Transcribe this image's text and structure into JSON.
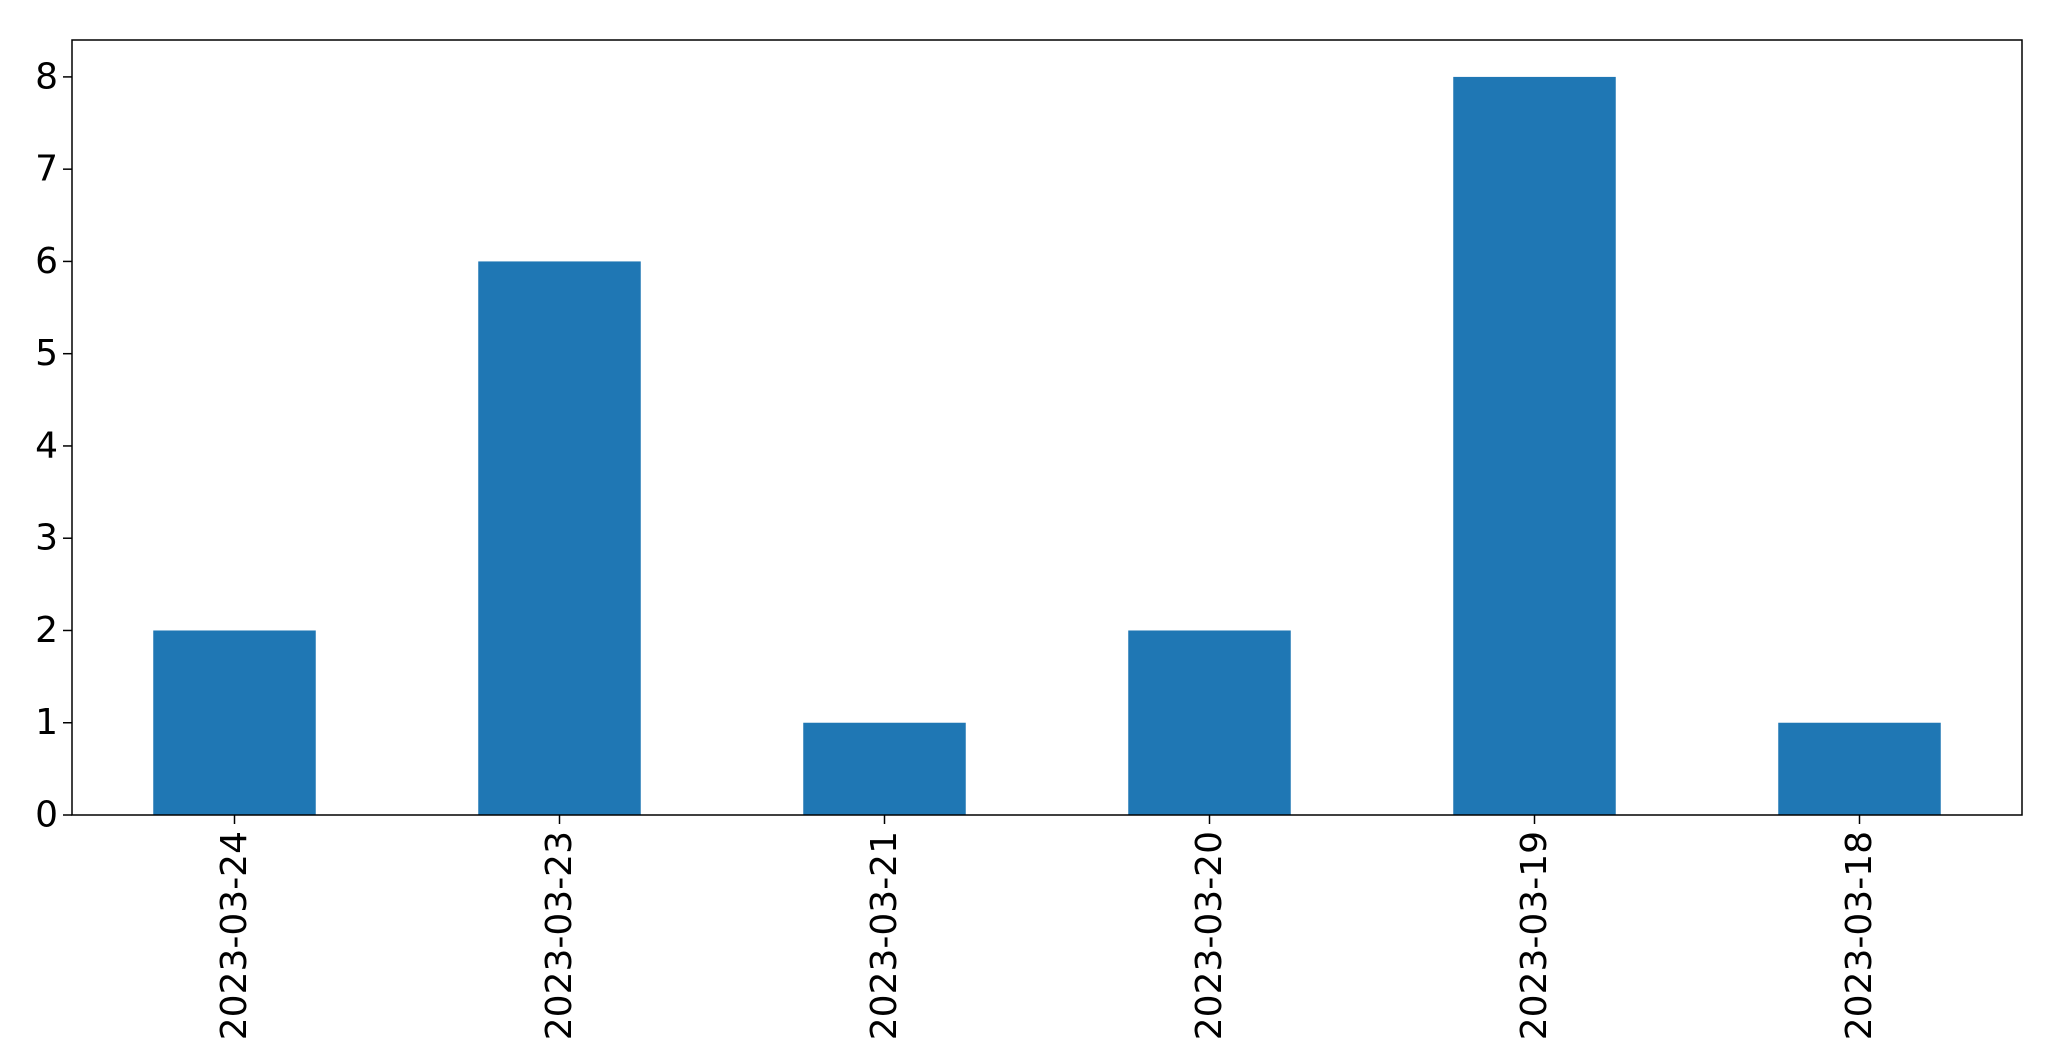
{
  "chart_data": {
    "type": "bar",
    "categories": [
      "2023-03-24",
      "2023-03-23",
      "2023-03-21",
      "2023-03-20",
      "2023-03-19",
      "2023-03-18"
    ],
    "values": [
      2,
      6,
      1,
      2,
      8,
      1
    ],
    "title": "",
    "xlabel": "",
    "ylabel": "",
    "ylim": [
      0,
      8.4
    ],
    "yticks": [
      0,
      1,
      2,
      3,
      4,
      5,
      6,
      7,
      8
    ],
    "bar_color": "#1f77b4",
    "grid": false,
    "legend": "none"
  }
}
